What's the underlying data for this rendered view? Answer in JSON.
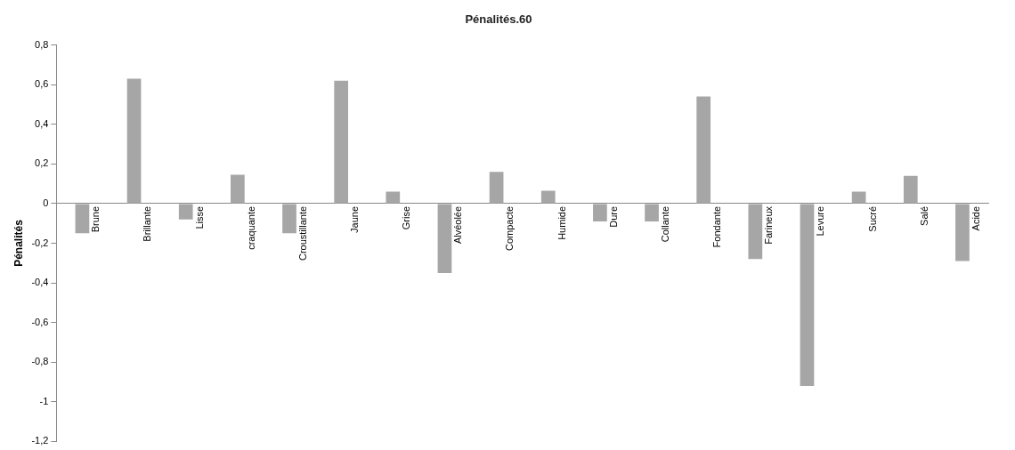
{
  "chart_data": {
    "type": "bar",
    "title": "Pénalités.60",
    "ylabel": "Pénalités",
    "categories": [
      "Brune",
      "Brillante",
      "Lisse",
      "craquante",
      "Croustillante",
      "Jaune",
      "Grise",
      "Alvéolée",
      "Compacte",
      "Humide",
      "Dure",
      "Collante",
      "Fondante",
      "Farineux",
      "Levure",
      "Sucré",
      "Salé",
      "Acide"
    ],
    "values": [
      -0.15,
      0.63,
      -0.08,
      0.145,
      -0.15,
      0.62,
      0.06,
      -0.35,
      0.16,
      0.065,
      -0.09,
      -0.09,
      0.54,
      -0.28,
      -0.92,
      0.06,
      0.14,
      -0.29
    ],
    "color": "#a6a6a6",
    "ylim": [
      -1.2,
      0.8
    ],
    "yticks": [
      {
        "value": -1.2,
        "label": "-1,2"
      },
      {
        "value": -1,
        "label": "-1"
      },
      {
        "value": -0.8,
        "label": "-0,8"
      },
      {
        "value": -0.6,
        "label": "-0,6"
      },
      {
        "value": -0.4,
        "label": "-0,4"
      },
      {
        "value": -0.2,
        "label": "-0,2"
      },
      {
        "value": 0,
        "label": "0"
      },
      {
        "value": 0.2,
        "label": "0,2"
      },
      {
        "value": 0.4,
        "label": "0,4"
      },
      {
        "value": 0.6,
        "label": "0,6"
      },
      {
        "value": 0.8,
        "label": "0,8"
      }
    ],
    "grid": false,
    "legend": false
  }
}
